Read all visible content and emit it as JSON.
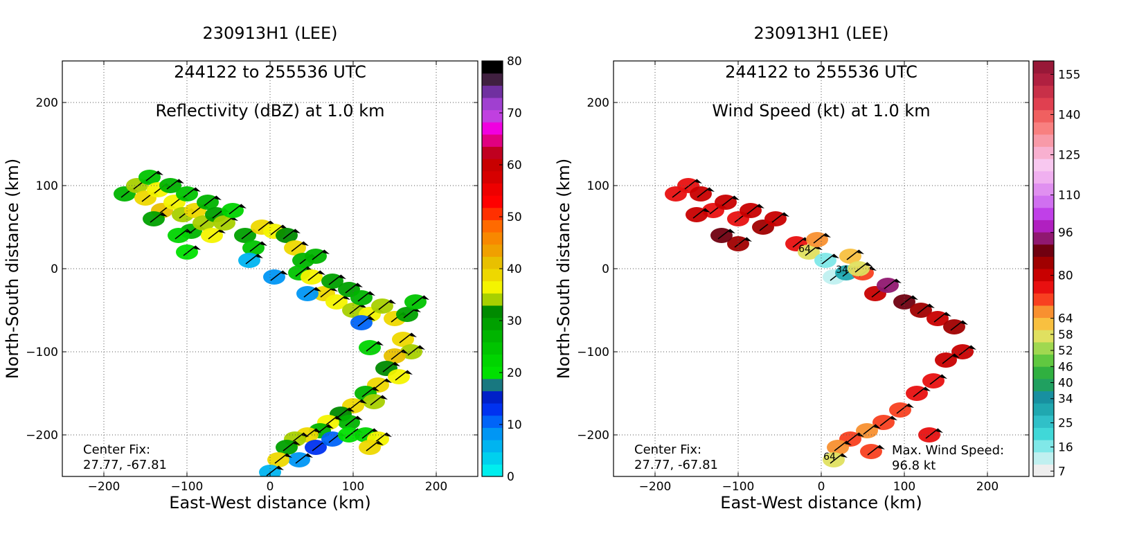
{
  "panels": [
    {
      "title_line1": "230913H1 (LEE)",
      "title_line2": "244122 to 255536 UTC",
      "title_line3": "Reflectivity (dBZ) at 1.0 km",
      "annotation_left_line1": "Center Fix:",
      "annotation_left_line2": "27.77, -67.81",
      "annotation_right_line1": "",
      "annotation_right_line2": ""
    },
    {
      "title_line1": "230913H1 (LEE)",
      "title_line2": "244122 to 255536 UTC",
      "title_line3": "Wind Speed (kt) at 1.0 km",
      "annotation_left_line1": "Center Fix:",
      "annotation_left_line2": "27.77, -67.81",
      "annotation_right_line1": "Max. Wind Speed:",
      "annotation_right_line2": "96.8 kt"
    }
  ],
  "chart_data": [
    {
      "type": "heatmap",
      "title": "230913H1 (LEE) 244122 to 255536 UTC Reflectivity (dBZ) at 1.0 km",
      "xlabel": "East-West distance (km)",
      "ylabel": "North-South distance (km)",
      "xlim": [
        -250,
        250
      ],
      "ylim": [
        -250,
        250
      ],
      "xticks": [
        -200,
        -100,
        0,
        100,
        200
      ],
      "yticks": [
        -200,
        -100,
        0,
        100,
        200
      ],
      "xtick_labels": [
        "−200",
        "−100",
        "0",
        "100",
        "200"
      ],
      "ytick_labels": [
        "−200",
        "−100",
        "0",
        "100",
        "200"
      ],
      "grid": true,
      "colorbar": {
        "min": 0,
        "max": 80,
        "ticks": [
          0,
          10,
          20,
          30,
          40,
          50,
          60,
          70,
          80
        ],
        "tick_labels": [
          "0",
          "10",
          "20",
          "30",
          "40",
          "50",
          "60",
          "70",
          "80"
        ],
        "colors": [
          "#00eeee",
          "#00d0ee",
          "#00b4f0",
          "#0096f4",
          "#0064f8",
          "#0032f0",
          "#0020c8",
          "#187880",
          "#00e000",
          "#00d400",
          "#00c400",
          "#00b400",
          "#00a000",
          "#008a00",
          "#a8d000",
          "#f4f400",
          "#eed800",
          "#e8c000",
          "#f0a000",
          "#f88800",
          "#ff6a00",
          "#ff3000",
          "#ff0000",
          "#ee0000",
          "#d60000",
          "#c80000",
          "#c00020",
          "#e00080",
          "#f000e0",
          "#c040e0",
          "#a040d0",
          "#7030a0",
          "#402040",
          "#000000"
        ]
      },
      "field": [
        {
          "x": -175,
          "y": 90,
          "v": 27
        },
        {
          "x": -160,
          "y": 100,
          "v": 33
        },
        {
          "x": -145,
          "y": 110,
          "v": 24
        },
        {
          "x": -150,
          "y": 85,
          "v": 38
        },
        {
          "x": -135,
          "y": 95,
          "v": 36
        },
        {
          "x": -120,
          "y": 100,
          "v": 28
        },
        {
          "x": -130,
          "y": 70,
          "v": 40
        },
        {
          "x": -115,
          "y": 80,
          "v": 37
        },
        {
          "x": -100,
          "y": 90,
          "v": 25
        },
        {
          "x": -105,
          "y": 65,
          "v": 35
        },
        {
          "x": -90,
          "y": 70,
          "v": 39
        },
        {
          "x": -75,
          "y": 80,
          "v": 26
        },
        {
          "x": -95,
          "y": 45,
          "v": 27
        },
        {
          "x": -80,
          "y": 55,
          "v": 33
        },
        {
          "x": -65,
          "y": 65,
          "v": 30
        },
        {
          "x": -70,
          "y": 40,
          "v": 37
        },
        {
          "x": -55,
          "y": 55,
          "v": 34
        },
        {
          "x": -45,
          "y": 70,
          "v": 22
        },
        {
          "x": -110,
          "y": 40,
          "v": 23
        },
        {
          "x": -100,
          "y": 20,
          "v": 21
        },
        {
          "x": -140,
          "y": 60,
          "v": 29
        },
        {
          "x": -30,
          "y": 40,
          "v": 30
        },
        {
          "x": -20,
          "y": 25,
          "v": 25
        },
        {
          "x": -10,
          "y": 50,
          "v": 38
        },
        {
          "x": 5,
          "y": 45,
          "v": 36
        },
        {
          "x": 20,
          "y": 40,
          "v": 31
        },
        {
          "x": 30,
          "y": 25,
          "v": 39
        },
        {
          "x": 40,
          "y": 10,
          "v": 28
        },
        {
          "x": 35,
          "y": -5,
          "v": 24
        },
        {
          "x": 50,
          "y": -10,
          "v": 36
        },
        {
          "x": 55,
          "y": 15,
          "v": 27
        },
        {
          "x": 65,
          "y": -30,
          "v": 38
        },
        {
          "x": 75,
          "y": -15,
          "v": 29
        },
        {
          "x": 80,
          "y": -40,
          "v": 37
        },
        {
          "x": 95,
          "y": -25,
          "v": 30
        },
        {
          "x": 100,
          "y": -50,
          "v": 35
        },
        {
          "x": 110,
          "y": -35,
          "v": 26
        },
        {
          "x": 120,
          "y": -55,
          "v": 37
        },
        {
          "x": 135,
          "y": -45,
          "v": 33
        },
        {
          "x": 150,
          "y": -60,
          "v": 39
        },
        {
          "x": 165,
          "y": -55,
          "v": 30
        },
        {
          "x": 175,
          "y": -40,
          "v": 24
        },
        {
          "x": 160,
          "y": -85,
          "v": 38
        },
        {
          "x": 170,
          "y": -100,
          "v": 33
        },
        {
          "x": 150,
          "y": -105,
          "v": 40
        },
        {
          "x": 140,
          "y": -120,
          "v": 31
        },
        {
          "x": 155,
          "y": -130,
          "v": 36
        },
        {
          "x": 130,
          "y": -140,
          "v": 38
        },
        {
          "x": 115,
          "y": -150,
          "v": 27
        },
        {
          "x": 125,
          "y": -160,
          "v": 35
        },
        {
          "x": 100,
          "y": -165,
          "v": 39
        },
        {
          "x": 85,
          "y": -175,
          "v": 32
        },
        {
          "x": 95,
          "y": -185,
          "v": 28
        },
        {
          "x": 70,
          "y": -185,
          "v": 37
        },
        {
          "x": 60,
          "y": -195,
          "v": 26
        },
        {
          "x": 45,
          "y": -200,
          "v": 38
        },
        {
          "x": 30,
          "y": -205,
          "v": 33
        },
        {
          "x": 20,
          "y": -215,
          "v": 29
        },
        {
          "x": 55,
          "y": -215,
          "v": 12
        },
        {
          "x": 75,
          "y": -205,
          "v": 10
        },
        {
          "x": 95,
          "y": -200,
          "v": 20
        },
        {
          "x": 115,
          "y": -200,
          "v": 22
        },
        {
          "x": 130,
          "y": -205,
          "v": 37
        },
        {
          "x": 120,
          "y": -215,
          "v": 38
        },
        {
          "x": 35,
          "y": -230,
          "v": 8
        },
        {
          "x": 10,
          "y": -230,
          "v": 38
        },
        {
          "x": 0,
          "y": -245,
          "v": 5
        },
        {
          "x": -25,
          "y": 10,
          "v": 5
        },
        {
          "x": 5,
          "y": -10,
          "v": 9
        },
        {
          "x": 45,
          "y": -30,
          "v": 8
        },
        {
          "x": 110,
          "y": -65,
          "v": 11
        },
        {
          "x": 120,
          "y": -95,
          "v": 23
        }
      ]
    },
    {
      "type": "heatmap",
      "title": "230913H1 (LEE) 244122 to 255536 UTC Wind Speed (kt) at 1.0 km",
      "xlabel": "East-West distance (km)",
      "ylabel": "North-South distance (km)",
      "xlim": [
        -250,
        250
      ],
      "ylim": [
        -250,
        250
      ],
      "xticks": [
        -200,
        -100,
        0,
        100,
        200
      ],
      "yticks": [
        -200,
        -100,
        0,
        100,
        200
      ],
      "xtick_labels": [
        "−200",
        "−100",
        "0",
        "100",
        "200"
      ],
      "ytick_labels": [
        "−200",
        "−100",
        "0",
        "100",
        "200"
      ],
      "grid": true,
      "colorbar": {
        "min": 5,
        "max": 160,
        "ticks": [
          7,
          16,
          25,
          34,
          40,
          46,
          52,
          58,
          64,
          80,
          96,
          110,
          125,
          140,
          155
        ],
        "tick_labels": [
          "7",
          "16",
          "25",
          "34",
          "40",
          "46",
          "52",
          "58",
          "64",
          "80",
          "96",
          "110",
          "125",
          "140",
          "155"
        ],
        "colors": [
          "#eeeeee",
          "#c0f0f0",
          "#80e8e8",
          "#40d8d8",
          "#30c0c8",
          "#20a8b0",
          "#1890a0",
          "#20a060",
          "#30b040",
          "#60c840",
          "#a0d850",
          "#e0e060",
          "#f8c040",
          "#f89030",
          "#f84020",
          "#e81010",
          "#c80000",
          "#a00000",
          "#700010",
          "#901870",
          "#b020c0",
          "#c040e8",
          "#d070f0",
          "#e090f0",
          "#f0b0f0",
          "#f8c8f0",
          "#f8b0d0",
          "#f89aa8",
          "#f88080",
          "#f06060",
          "#e04050",
          "#c83048",
          "#b02040",
          "#981838"
        ]
      },
      "field": [
        {
          "x": -175,
          "y": 90,
          "v": 76
        },
        {
          "x": -160,
          "y": 100,
          "v": 74
        },
        {
          "x": -145,
          "y": 90,
          "v": 80
        },
        {
          "x": -130,
          "y": 70,
          "v": 75
        },
        {
          "x": -115,
          "y": 80,
          "v": 82
        },
        {
          "x": -100,
          "y": 60,
          "v": 76
        },
        {
          "x": -85,
          "y": 70,
          "v": 79
        },
        {
          "x": -70,
          "y": 50,
          "v": 84
        },
        {
          "x": -55,
          "y": 60,
          "v": 80
        },
        {
          "x": -100,
          "y": 30,
          "v": 86
        },
        {
          "x": -120,
          "y": 40,
          "v": 88
        },
        {
          "x": -150,
          "y": 65,
          "v": 78
        },
        {
          "x": -30,
          "y": 30,
          "v": 74
        },
        {
          "x": -15,
          "y": 20,
          "v": 58
        },
        {
          "x": -5,
          "y": 35,
          "v": 66
        },
        {
          "x": 5,
          "y": 10,
          "v": 18
        },
        {
          "x": 15,
          "y": -10,
          "v": 14
        },
        {
          "x": 30,
          "y": -5,
          "v": 28
        },
        {
          "x": 35,
          "y": 15,
          "v": 60
        },
        {
          "x": 50,
          "y": -5,
          "v": 70
        },
        {
          "x": 65,
          "y": -30,
          "v": 78
        },
        {
          "x": 80,
          "y": -20,
          "v": 92
        },
        {
          "x": 100,
          "y": -40,
          "v": 88
        },
        {
          "x": 120,
          "y": -50,
          "v": 84
        },
        {
          "x": 140,
          "y": -60,
          "v": 80
        },
        {
          "x": 160,
          "y": -70,
          "v": 86
        },
        {
          "x": 170,
          "y": -100,
          "v": 82
        },
        {
          "x": 150,
          "y": -110,
          "v": 78
        },
        {
          "x": 135,
          "y": -135,
          "v": 76
        },
        {
          "x": 115,
          "y": -150,
          "v": 74
        },
        {
          "x": 95,
          "y": -170,
          "v": 72
        },
        {
          "x": 75,
          "y": -185,
          "v": 70
        },
        {
          "x": 55,
          "y": -195,
          "v": 68
        },
        {
          "x": 35,
          "y": -205,
          "v": 70
        },
        {
          "x": 20,
          "y": -215,
          "v": 66
        },
        {
          "x": 60,
          "y": -220,
          "v": 72
        },
        {
          "x": 15,
          "y": -230,
          "v": 56
        },
        {
          "x": 130,
          "y": -200,
          "v": 74
        },
        {
          "x": 45,
          "y": 0,
          "v": 58
        }
      ],
      "contours": [
        {
          "level_label": "64",
          "x": -20,
          "y": 20
        },
        {
          "level_label": "34",
          "x": 25,
          "y": -5
        },
        {
          "level_label": "64",
          "x": 10,
          "y": -230
        }
      ]
    }
  ]
}
